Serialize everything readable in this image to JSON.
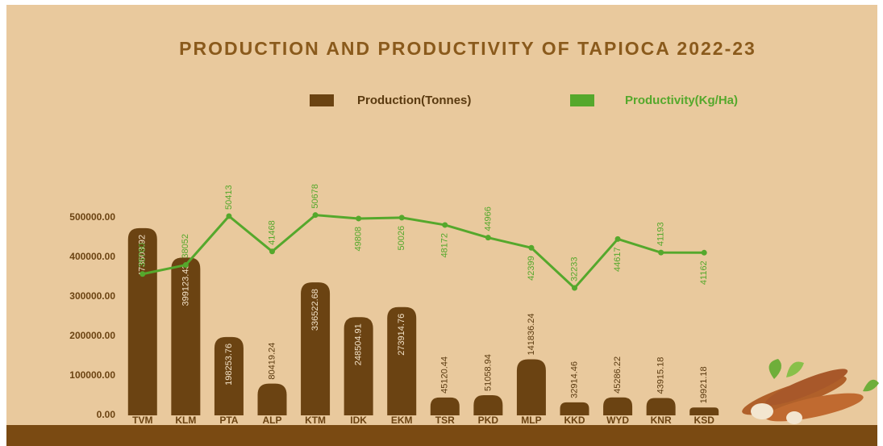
{
  "chart_data": {
    "type": "bar",
    "title": "PRODUCTION AND PRODUCTIVITY OF TAPIOCA 2022-23",
    "categories": [
      "TVM",
      "KLM",
      "PTA",
      "ALP",
      "KTM",
      "IDK",
      "EKM",
      "TSR",
      "PKD",
      "MLP",
      "KKD",
      "WYD",
      "KNR",
      "KSD"
    ],
    "series": [
      {
        "name": "Production(Tonnes)",
        "color": "#6b4312",
        "type": "bar",
        "values": [
          473603.92,
          399123.43,
          198253.76,
          80419.24,
          336522.68,
          248504.91,
          273914.76,
          45120.44,
          51058.94,
          141836.24,
          32914.46,
          45286.22,
          43915.18,
          19921.18
        ]
      },
      {
        "name": "Productivity(Kg/Ha)",
        "color": "#55a82c",
        "type": "line",
        "axis": "y2",
        "values": [
          35760,
          38052,
          50413,
          41468,
          50678,
          49808,
          50026,
          48172,
          44966,
          42399,
          32233,
          44617,
          41193,
          41162
        ]
      }
    ],
    "ylim": [
      0,
      500000
    ],
    "yticks": [
      {
        "value": 0,
        "label": "0.00"
      },
      {
        "value": 100000,
        "label": "100000.00"
      },
      {
        "value": 200000,
        "label": "200000.00"
      },
      {
        "value": 300000,
        "label": "300000.00"
      },
      {
        "value": 400000,
        "label": "400000.00"
      },
      {
        "value": 500000,
        "label": "500000.00"
      }
    ],
    "y2lim": [
      0,
      50000
    ]
  }
}
